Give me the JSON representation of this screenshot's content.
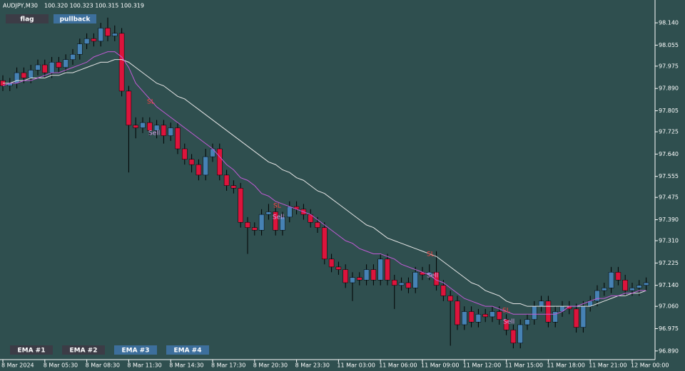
{
  "chart_data": {
    "type": "candlestick",
    "symbol": "AUDJPY,M30",
    "quote": "100.320 100.323 100.315 100.319",
    "buttons_top": [
      "flag",
      "pullback"
    ],
    "buttons_bottom": [
      "EMA #1",
      "EMA #2",
      "EMA #3",
      "EMA #4"
    ],
    "annotations": [
      "SL",
      "Sell",
      "SL",
      "Sell",
      "SL",
      "Sell",
      "SL",
      "Sell"
    ],
    "background": "#2f4f4f",
    "up_color": "#4682b4",
    "down_color": "#dc143c",
    "wick_color": "#000000",
    "categories": [
      "8 Mar 2024",
      null,
      null,
      null,
      null,
      null,
      "8 Mar 05:30",
      null,
      null,
      null,
      null,
      null,
      "8 Mar 08:30",
      null,
      null,
      null,
      null,
      null,
      "8 Mar 11:30",
      null,
      null,
      null,
      null,
      null,
      "8 Mar 14:30",
      null,
      null,
      null,
      null,
      null,
      "8 Mar 17:30",
      null,
      null,
      null,
      null,
      null,
      "8 Mar 20:30",
      null,
      null,
      null,
      null,
      null,
      "8 Mar 23:30",
      null,
      null,
      null,
      null,
      null,
      "11 Mar 03:00",
      null,
      null,
      null,
      null,
      null,
      "11 Mar 06:00",
      null,
      null,
      null,
      null,
      null,
      "11 Mar 09:00",
      null,
      null,
      null,
      null,
      null,
      "11 Mar 12:00",
      null,
      null,
      null,
      null,
      null,
      "11 Mar 15:00",
      null,
      null,
      null,
      null,
      null,
      "11 Mar 18:00",
      null,
      null,
      null,
      null,
      null,
      "11 Mar 21:00",
      null,
      null,
      null,
      null,
      null,
      "12 Mar 00:00",
      null,
      null
    ],
    "open": [
      97.92,
      97.9,
      97.91,
      97.95,
      97.93,
      97.96,
      97.98,
      97.95,
      97.99,
      97.97,
      98.0,
      98.02,
      98.06,
      98.08,
      98.07,
      98.12,
      98.09,
      98.1,
      97.88,
      97.75,
      97.74,
      97.76,
      97.73,
      97.75,
      97.71,
      97.74,
      97.66,
      97.62,
      97.6,
      97.56,
      97.63,
      97.66,
      97.56,
      97.52,
      97.51,
      97.38,
      97.36,
      97.35,
      97.41,
      97.42,
      97.35,
      97.4,
      97.44,
      97.43,
      97.41,
      97.38,
      97.36,
      97.24,
      97.21,
      97.2,
      97.15,
      97.17,
      97.16,
      97.2,
      97.16,
      97.24,
      97.16,
      97.14,
      97.15,
      97.13,
      97.19,
      97.18,
      97.19,
      97.14,
      97.1,
      97.08,
      96.99,
      97.04,
      97.0,
      97.03,
      97.02,
      97.04,
      97.01,
      96.97,
      96.92,
      96.99,
      97.01,
      97.06,
      97.08,
      97.0,
      97.04,
      97.06,
      97.05,
      96.98,
      97.06,
      97.08,
      97.12,
      97.13,
      97.19,
      97.16,
      97.12,
      97.13,
      97.14
    ],
    "high": [
      97.94,
      97.93,
      97.97,
      97.97,
      97.98,
      98.0,
      98.0,
      98.01,
      98.01,
      98.02,
      98.04,
      98.08,
      98.1,
      98.1,
      98.14,
      98.16,
      98.13,
      98.12,
      97.9,
      97.78,
      97.78,
      97.78,
      97.77,
      97.77,
      97.76,
      97.76,
      97.68,
      97.64,
      97.62,
      97.66,
      97.68,
      97.68,
      97.58,
      97.54,
      97.53,
      97.4,
      97.38,
      97.43,
      97.45,
      97.44,
      97.42,
      97.46,
      97.46,
      97.45,
      97.43,
      97.4,
      97.38,
      97.26,
      97.23,
      97.22,
      97.19,
      97.19,
      97.22,
      97.22,
      97.26,
      97.26,
      97.18,
      97.17,
      97.17,
      97.21,
      97.21,
      97.22,
      97.27,
      97.16,
      97.12,
      97.1,
      97.06,
      97.06,
      97.05,
      97.05,
      97.06,
      97.06,
      97.03,
      96.99,
      97.01,
      97.03,
      97.08,
      97.1,
      97.1,
      97.06,
      97.08,
      97.08,
      97.07,
      97.08,
      97.1,
      97.14,
      97.15,
      97.21,
      97.21,
      97.18,
      97.15,
      97.16,
      97.17
    ],
    "low": [
      97.88,
      97.88,
      97.89,
      97.91,
      97.91,
      97.94,
      97.93,
      97.93,
      97.95,
      97.95,
      97.98,
      98.0,
      98.04,
      98.05,
      98.05,
      98.07,
      98.07,
      97.86,
      97.57,
      97.7,
      97.72,
      97.71,
      97.7,
      97.68,
      97.69,
      97.64,
      97.6,
      97.57,
      97.54,
      97.54,
      97.61,
      97.54,
      97.5,
      97.49,
      97.36,
      97.26,
      97.33,
      97.33,
      97.39,
      97.33,
      97.33,
      97.38,
      97.41,
      97.39,
      97.36,
      97.34,
      97.22,
      97.19,
      97.18,
      97.13,
      97.08,
      97.14,
      97.14,
      97.14,
      97.14,
      97.14,
      97.05,
      97.12,
      97.11,
      97.11,
      97.16,
      97.16,
      97.12,
      97.08,
      96.91,
      96.97,
      96.97,
      96.98,
      96.98,
      97.0,
      97.0,
      96.99,
      96.95,
      96.9,
      96.9,
      96.97,
      96.99,
      97.04,
      96.98,
      96.98,
      97.02,
      97.03,
      96.96,
      96.96,
      97.04,
      97.06,
      97.1,
      97.11,
      97.14,
      97.1,
      97.1,
      97.1,
      97.12
    ],
    "close": [
      97.9,
      97.91,
      97.95,
      97.93,
      97.96,
      97.98,
      97.95,
      97.99,
      97.97,
      98.0,
      98.02,
      98.06,
      98.08,
      98.07,
      98.12,
      98.09,
      98.1,
      97.88,
      97.75,
      97.74,
      97.76,
      97.73,
      97.75,
      97.71,
      97.74,
      97.66,
      97.62,
      97.6,
      97.56,
      97.63,
      97.66,
      97.56,
      97.52,
      97.51,
      97.38,
      97.36,
      97.35,
      97.41,
      97.42,
      97.35,
      97.4,
      97.44,
      97.43,
      97.41,
      97.38,
      97.36,
      97.24,
      97.21,
      97.2,
      97.15,
      97.17,
      97.16,
      97.2,
      97.16,
      97.24,
      97.16,
      97.14,
      97.15,
      97.13,
      97.19,
      97.18,
      97.19,
      97.14,
      97.1,
      97.08,
      96.99,
      97.04,
      97.0,
      97.03,
      97.02,
      97.04,
      97.01,
      96.97,
      96.92,
      96.99,
      97.01,
      97.06,
      97.08,
      97.0,
      97.04,
      97.06,
      97.05,
      96.98,
      97.06,
      97.08,
      97.12,
      97.13,
      97.19,
      97.16,
      97.12,
      97.13,
      97.14,
      97.15
    ],
    "ema_lines": [
      {
        "color": "#e6e6e6",
        "values": [
          97.91,
          97.91,
          97.92,
          97.92,
          97.93,
          97.93,
          97.93,
          97.94,
          97.94,
          97.95,
          97.95,
          97.96,
          97.97,
          97.98,
          97.99,
          97.99,
          98.0,
          98.0,
          97.99,
          97.97,
          97.95,
          97.93,
          97.91,
          97.9,
          97.88,
          97.86,
          97.85,
          97.83,
          97.81,
          97.79,
          97.77,
          97.75,
          97.73,
          97.71,
          97.69,
          97.67,
          97.65,
          97.63,
          97.61,
          97.6,
          97.58,
          97.57,
          97.55,
          97.54,
          97.52,
          97.5,
          97.49,
          97.47,
          97.45,
          97.43,
          97.41,
          97.39,
          97.37,
          97.36,
          97.34,
          97.32,
          97.31,
          97.3,
          97.29,
          97.28,
          97.27,
          97.26,
          97.25,
          97.23,
          97.21,
          97.19,
          97.17,
          97.15,
          97.14,
          97.12,
          97.11,
          97.1,
          97.08,
          97.07,
          97.07,
          97.06,
          97.06,
          97.06,
          97.06,
          97.06,
          97.06,
          97.06,
          97.06,
          97.06,
          97.06,
          97.07,
          97.08,
          97.09,
          97.1,
          97.1,
          97.11,
          97.11,
          97.12
        ]
      },
      {
        "color": "#c25bd6",
        "values": [
          97.9,
          97.91,
          97.91,
          97.92,
          97.92,
          97.93,
          97.94,
          97.95,
          97.95,
          97.96,
          97.97,
          97.98,
          97.99,
          98.01,
          98.02,
          98.03,
          98.03,
          98.01,
          97.97,
          97.91,
          97.88,
          97.85,
          97.82,
          97.8,
          97.78,
          97.76,
          97.74,
          97.72,
          97.7,
          97.68,
          97.66,
          97.63,
          97.6,
          97.58,
          97.55,
          97.54,
          97.52,
          97.49,
          97.48,
          97.46,
          97.45,
          97.44,
          97.43,
          97.42,
          97.41,
          97.39,
          97.37,
          97.35,
          97.33,
          97.31,
          97.3,
          97.28,
          97.27,
          97.26,
          97.26,
          97.25,
          97.24,
          97.22,
          97.21,
          97.2,
          97.19,
          97.18,
          97.16,
          97.15,
          97.13,
          97.11,
          97.09,
          97.08,
          97.07,
          97.06,
          97.06,
          97.05,
          97.04,
          97.03,
          97.03,
          97.03,
          97.03,
          97.03,
          97.03,
          97.03,
          97.04,
          97.06,
          97.06,
          97.07,
          97.08,
          97.09,
          97.09,
          97.1,
          97.1,
          97.11,
          97.11,
          97.12,
          97.12
        ]
      }
    ],
    "ylim": [
      96.857,
      98.227
    ],
    "yticks": [
      {
        "value": 98.14,
        "label": "98.140"
      },
      {
        "value": 98.055,
        "label": "98.055"
      },
      {
        "value": 97.975,
        "label": "97.975"
      },
      {
        "value": 97.89,
        "label": "97.890"
      },
      {
        "value": 97.805,
        "label": "97.805"
      },
      {
        "value": 97.725,
        "label": "97.725"
      },
      {
        "value": 97.64,
        "label": "97.640"
      },
      {
        "value": 97.555,
        "label": "97.555"
      },
      {
        "value": 97.475,
        "label": "97.475"
      },
      {
        "value": 97.39,
        "label": "97.390"
      },
      {
        "value": 97.31,
        "label": "97.310"
      },
      {
        "value": 97.225,
        "label": "97.225"
      },
      {
        "value": 97.14,
        "label": "97.140"
      },
      {
        "value": 97.06,
        "label": "97.060"
      },
      {
        "value": 96.975,
        "label": "96.975"
      },
      {
        "value": 96.89,
        "label": "96.890"
      }
    ]
  }
}
